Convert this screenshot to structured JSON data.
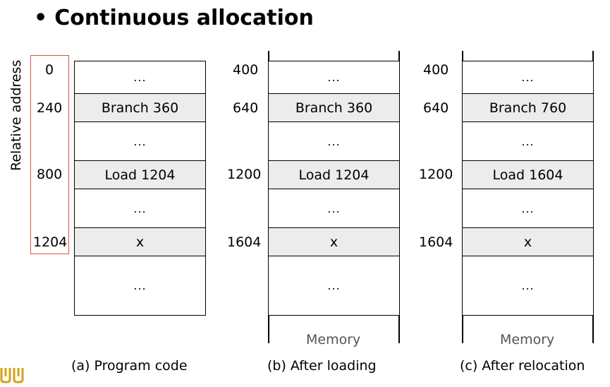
{
  "title": "Continuous allocation",
  "bullet": "•",
  "relative_address_label": "Relative address",
  "ellipsis": "...",
  "memory_label": "Memory",
  "panels": [
    {
      "caption": "(a) Program code",
      "addresses": [
        "0",
        "240",
        "800",
        "1204"
      ],
      "cells": [
        "...",
        "Branch 360",
        "...",
        "Load 1204",
        "...",
        "x",
        "..."
      ]
    },
    {
      "caption": "(b) After loading",
      "addresses": [
        "400",
        "640",
        "1200",
        "1604"
      ],
      "cells": [
        "...",
        "Branch 360",
        "...",
        "Load 1204",
        "...",
        "x",
        "..."
      ]
    },
    {
      "caption": "(c) After relocation",
      "addresses": [
        "400",
        "640",
        "1200",
        "1604"
      ],
      "cells": [
        "...",
        "Branch 760",
        "...",
        "Load 1604",
        "...",
        "x",
        "..."
      ]
    }
  ],
  "colors": {
    "highlight_box": "#d9534f",
    "shaded_cell": "#ececec",
    "logo": "#d4a017"
  },
  "icons": {
    "logo": "university-logo-icon"
  }
}
